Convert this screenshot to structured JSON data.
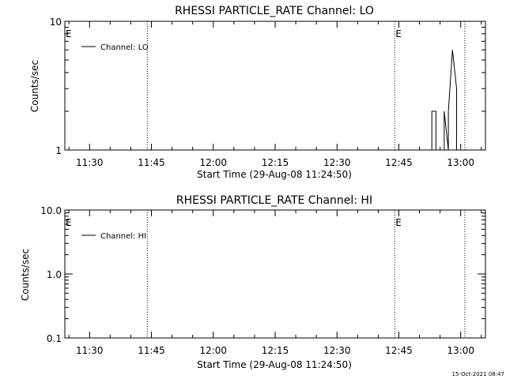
{
  "chart_data": [
    {
      "type": "line",
      "title": "RHESSI PARTICLE_RATE Channel: LO",
      "xlabel": "Start Time (29-Aug-08 11:24:50)",
      "ylabel": "Counts/sec",
      "yscale": "log",
      "ylim": [
        1,
        10
      ],
      "y_tick_labels": [
        "1",
        "10"
      ],
      "y_tick_values": [
        1,
        10
      ],
      "x_range_minutes": [
        "11:24",
        "13:06"
      ],
      "x_tick_labels": [
        "11:30",
        "11:45",
        "12:00",
        "12:15",
        "12:30",
        "12:45",
        "13:00"
      ],
      "x_tick_values": [
        "11:30",
        "11:45",
        "12:00",
        "12:15",
        "12:30",
        "12:45",
        "13:00"
      ],
      "legend_position": "top-left",
      "legend": "Channel: LO",
      "event_markers": [
        {
          "label": "E",
          "time": "11:24"
        },
        {
          "label": "E",
          "time": "12:44"
        }
      ],
      "vertical_lines": [
        "11:44",
        "12:44",
        "13:01"
      ],
      "series": [
        {
          "name": "Channel: LO",
          "x": [
            "12:53",
            "12:53",
            "12:54",
            "12:54",
            "12:56",
            "12:56",
            "12:57",
            "12:57",
            "12:58",
            "12:59",
            "12:59"
          ],
          "y": [
            1,
            2,
            2,
            1,
            1,
            2,
            1,
            2,
            6,
            3,
            1
          ]
        }
      ],
      "grid": false
    },
    {
      "type": "line",
      "title": "RHESSI PARTICLE_RATE Channel: HI",
      "xlabel": "Start Time (29-Aug-08 11:24:50)",
      "ylabel": "Counts/sec",
      "yscale": "log",
      "ylim": [
        0.1,
        10
      ],
      "y_tick_labels": [
        "0.1",
        "1.0",
        "10.0"
      ],
      "y_tick_values": [
        0.1,
        1,
        10
      ],
      "x_range_minutes": [
        "11:24",
        "13:06"
      ],
      "x_tick_labels": [
        "11:30",
        "11:45",
        "12:00",
        "12:15",
        "12:30",
        "12:45",
        "13:00"
      ],
      "x_tick_values": [
        "11:30",
        "11:45",
        "12:00",
        "12:15",
        "12:30",
        "12:45",
        "13:00"
      ],
      "legend_position": "top-left",
      "legend": "Channel: HI",
      "event_markers": [
        {
          "label": "E",
          "time": "11:24"
        },
        {
          "label": "E",
          "time": "12:44"
        }
      ],
      "vertical_lines": [
        "11:44",
        "12:44",
        "13:01"
      ],
      "series": [
        {
          "name": "Channel: HI",
          "x": [],
          "y": []
        }
      ],
      "grid": false
    }
  ],
  "footer": {
    "timestamp": "15-Oct-2021 08:47"
  }
}
